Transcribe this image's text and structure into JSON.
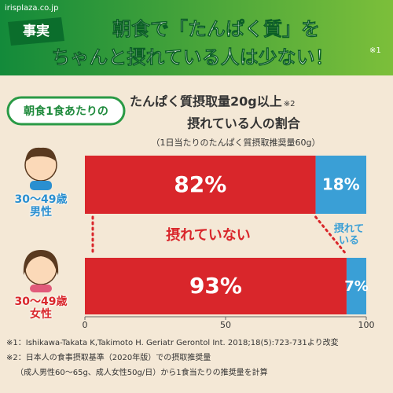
{
  "site": "irisplaza.co.jp",
  "banner": {
    "badge": "事実",
    "lines": [
      "朝食で「たんぱく質」を",
      "ちゃんと摂れている人は少ない！"
    ],
    "note": "※1"
  },
  "chart_data": {
    "type": "bar",
    "orientation": "horizontal",
    "stacked": true,
    "pill": "朝食1食あたりの",
    "title": "たんぱく質摂取量20g以上",
    "title_note": "※2",
    "title_line2": "摂れている人の割合",
    "subtitle": "（1日当たりのたんぱく質摂取推奨量60g）",
    "categories": [
      "30〜49歳\n男性",
      "30〜49歳\n女性"
    ],
    "category_colors": [
      "#2a8fd0",
      "#d9262b"
    ],
    "series": [
      {
        "name": "摂れていない",
        "color": "#d9262b",
        "values": [
          82,
          93
        ],
        "value_labels": [
          "82%",
          "93%"
        ]
      },
      {
        "name": "摂れている",
        "color": "#3a9fd6",
        "values": [
          18,
          7
        ],
        "value_labels": [
          "18%",
          "7%"
        ]
      }
    ],
    "xlim": [
      0,
      100
    ],
    "xticks": [
      0,
      50,
      100
    ]
  },
  "footnotes": [
    "※1：Ishikawa-Takata K,Takimoto H. Geriatr Gerontol Int. 2018;18(5):723-731より改変",
    "※2：日本人の食事摂取基準（2020年版）での摂取推奨量",
    "（成人男性60〜65g、成人女性50g/日）から1食当たりの推奨量を計算"
  ]
}
